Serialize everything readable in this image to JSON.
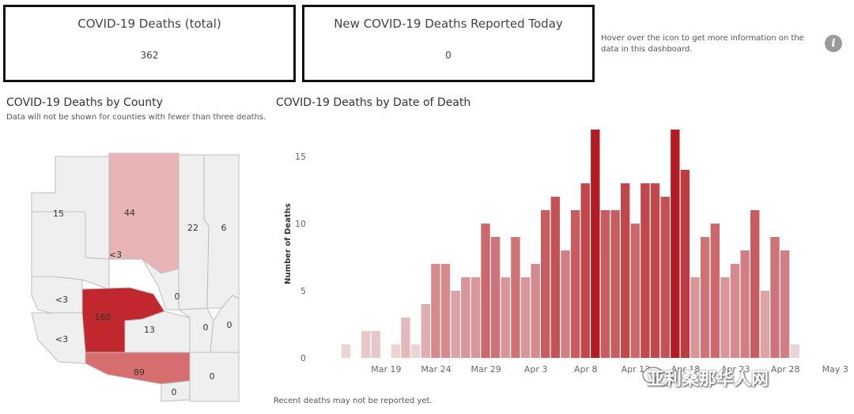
{
  "kpis": {
    "total_title": "COVID-19 Deaths (total)",
    "total_value": "362",
    "new_title": "New COVID-19 Deaths Reported Today",
    "new_value": "0"
  },
  "hover_note": "Hover over the icon to get more information on the data in this dashboard.",
  "info_icon": "info-icon",
  "info_glyph": "i",
  "map": {
    "title": "COVID-19 Deaths by County",
    "subtitle": "Data will not be shown for counties with fewer than three deaths.",
    "counties": [
      {
        "label": "15",
        "shade": "none"
      },
      {
        "label": "44",
        "shade": "light"
      },
      {
        "label": "22",
        "shade": "none"
      },
      {
        "label": "6",
        "shade": "none"
      },
      {
        "label": "<3",
        "shade": "none"
      },
      {
        "label": "<3",
        "shade": "none"
      },
      {
        "label": "0",
        "shade": "none"
      },
      {
        "label": "168",
        "shade": "dark"
      },
      {
        "label": "13",
        "shade": "none"
      },
      {
        "label": "0",
        "shade": "none"
      },
      {
        "label": "0",
        "shade": "none"
      },
      {
        "label": "<3",
        "shade": "none"
      },
      {
        "label": "89",
        "shade": "medium"
      },
      {
        "label": "0",
        "shade": "none"
      },
      {
        "label": "0",
        "shade": "none"
      }
    ]
  },
  "colors": {
    "dark": "#c0282d",
    "medium": "#d66d6f",
    "light": "#e8b4b5",
    "none": "#efefef",
    "border": "#bdbdbd"
  },
  "chart_data": {
    "type": "bar",
    "title": "COVID-19 Deaths by Date of Death",
    "ylabel": "Number of Deaths",
    "xlabel": "",
    "ylim": [
      0,
      17
    ],
    "yticks": [
      0,
      5,
      10,
      15
    ],
    "x_tick_labels": [
      "Mar 19",
      "Mar 24",
      "Mar 29",
      "Apr 3",
      "Apr 8",
      "Apr 13",
      "Apr 18",
      "Apr 23",
      "Apr 28",
      "May 3"
    ],
    "categories": [
      "Mar 14",
      "Mar 15",
      "Mar 16",
      "Mar 17",
      "Mar 18",
      "Mar 19",
      "Mar 20",
      "Mar 21",
      "Mar 22",
      "Mar 23",
      "Mar 24",
      "Mar 25",
      "Mar 26",
      "Mar 27",
      "Mar 28",
      "Mar 29",
      "Mar 30",
      "Mar 31",
      "Apr 1",
      "Apr 2",
      "Apr 3",
      "Apr 4",
      "Apr 5",
      "Apr 6",
      "Apr 7",
      "Apr 8",
      "Apr 9",
      "Apr 10",
      "Apr 11",
      "Apr 12",
      "Apr 13",
      "Apr 14",
      "Apr 15",
      "Apr 16",
      "Apr 17",
      "Apr 18",
      "Apr 19",
      "Apr 20",
      "Apr 21",
      "Apr 22",
      "Apr 23",
      "Apr 24",
      "Apr 25",
      "Apr 26",
      "Apr 27",
      "Apr 28",
      "Apr 29",
      "Apr 30",
      "May 1",
      "May 2"
    ],
    "values": [
      0,
      1,
      0,
      2,
      2,
      0,
      1,
      3,
      1,
      4,
      7,
      7,
      5,
      6,
      6,
      10,
      9,
      6,
      9,
      6,
      7,
      11,
      12,
      8,
      11,
      13,
      17,
      11,
      11,
      13,
      10,
      13,
      13,
      12,
      17,
      14,
      6,
      9,
      10,
      6,
      7,
      8,
      11,
      5,
      9,
      8,
      1,
      0,
      0,
      0
    ],
    "footnote": "Recent deaths may not be reported yet."
  },
  "watermark": "亚利桑那华人网"
}
